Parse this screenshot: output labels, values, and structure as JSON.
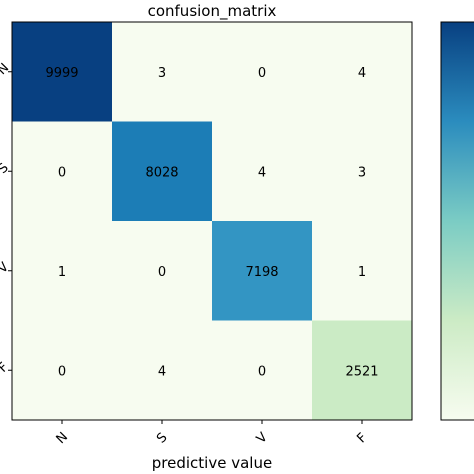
{
  "chart_data": {
    "type": "heatmap",
    "title": "confusion_matrix",
    "xlabel": "predictive value",
    "ylabel": "",
    "x_categories": [
      "N",
      "S",
      "V",
      "F"
    ],
    "y_categories": [
      "N",
      "S",
      "V",
      "F"
    ],
    "matrix": [
      [
        9999,
        3,
        0,
        4
      ],
      [
        0,
        8028,
        4,
        3
      ],
      [
        1,
        0,
        7198,
        1
      ],
      [
        0,
        4,
        0,
        2521
      ]
    ],
    "colormap": "GnBu",
    "color_range": [
      0,
      9999
    ],
    "colors": {
      "low": "#f7fcf0",
      "mid_low": "#ccebc5",
      "mid": "#7bccc4",
      "mid_high": "#2b8cbe",
      "high": "#084081"
    },
    "colorbar": true,
    "grid": false
  }
}
